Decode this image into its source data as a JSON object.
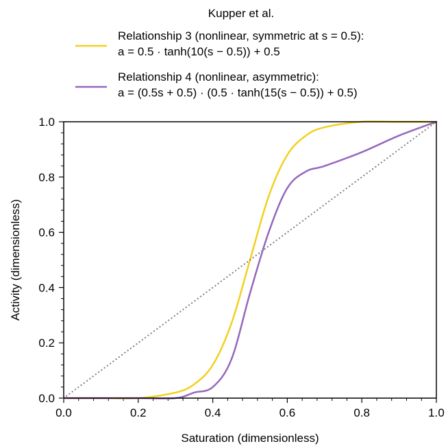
{
  "chart_data": {
    "type": "line",
    "title": "",
    "legend": {
      "title": "Kupper et al.",
      "placement": "top-center",
      "entries": [
        {
          "series": 0,
          "line1": "Relationship 3 (nonlinear, symmetric at s = 0.5):",
          "line2": "a = 0.5 · tanh(10(s − 0.5)) + 0.5"
        },
        {
          "series": 1,
          "line1": "Relationship 4 (nonlinear, asymmetric):",
          "line2": "a = (0.5s + 0.5) · (0.5 · tanh(15(s − 0.5)) + 0.5)"
        }
      ]
    },
    "xlabel": "Saturation (dimensionless)",
    "ylabel": "Activity (dimensionless)",
    "xlim": [
      0.0,
      1.0
    ],
    "ylim": [
      0.0,
      1.0
    ],
    "xticks": [
      "0.0",
      "0.2",
      "0.4",
      "0.6",
      "0.8",
      "1.0"
    ],
    "yticks": [
      "0.0",
      "0.2",
      "0.4",
      "0.6",
      "0.8",
      "1.0"
    ],
    "grid": false,
    "x": [
      0.0,
      0.1,
      0.2,
      0.3,
      0.35,
      0.4,
      0.45,
      0.5,
      0.55,
      0.6,
      0.65,
      0.7,
      0.8,
      0.9,
      1.0
    ],
    "series": [
      {
        "color": "#f2d01e",
        "style": "solid",
        "values": [
          0.0,
          0.0,
          0.0,
          0.02,
          0.05,
          0.12,
          0.27,
          0.5,
          0.73,
          0.88,
          0.95,
          0.98,
          1.0,
          1.0,
          1.0
        ]
      },
      {
        "color": "#9467bd",
        "style": "solid",
        "values": [
          0.0,
          0.0,
          0.0,
          0.0,
          0.02,
          0.04,
          0.14,
          0.38,
          0.6,
          0.76,
          0.82,
          0.84,
          0.89,
          0.95,
          1.0
        ]
      },
      {
        "color": "#808080",
        "style": "dotted",
        "values": [
          0.0,
          0.1,
          0.2,
          0.3,
          0.35,
          0.4,
          0.45,
          0.5,
          0.55,
          0.6,
          0.65,
          0.7,
          0.8,
          0.9,
          1.0
        ]
      }
    ]
  }
}
